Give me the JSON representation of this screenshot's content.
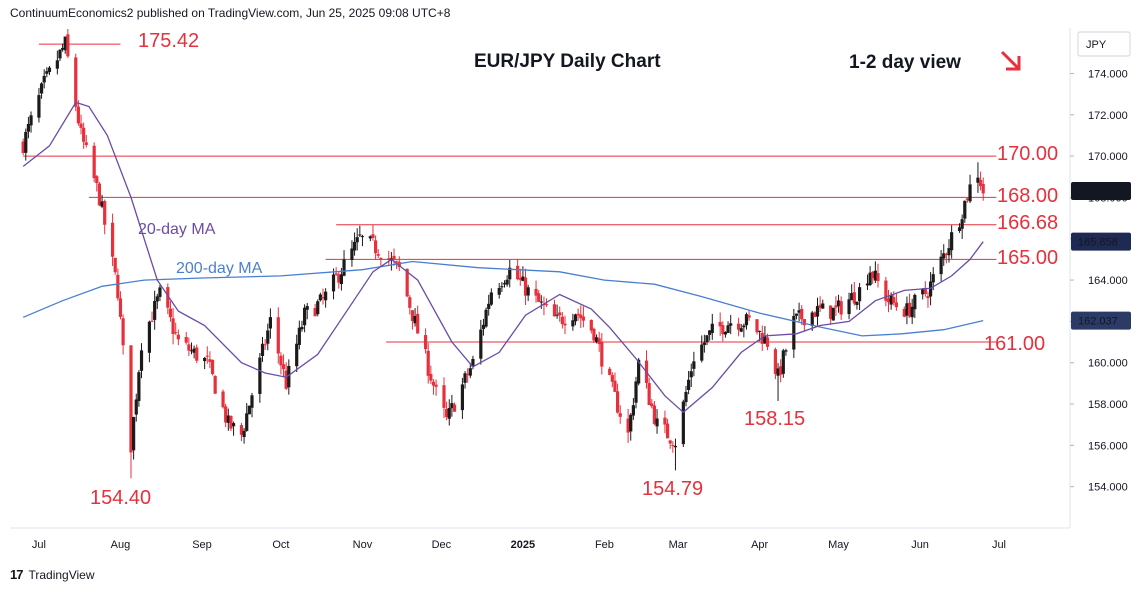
{
  "header": {
    "publisher": "ContinuumEconomics2 published on TradingView.com, Jun 25, 2025 09:08 UTC+8"
  },
  "footer": {
    "brand": "TradingView",
    "logo": "tradingview-logo-icon"
  },
  "colors": {
    "up": "#1b1b1b",
    "down": "#e8303c",
    "ma20": "#6a4ca8",
    "ma200": "#4a7fd0",
    "levels": "#e8303c",
    "ma20_badge": "#1f2a54",
    "ma200_badge": "#2c3a66",
    "price_badge": "#131722"
  },
  "chart_data": {
    "type": "candlestick",
    "title": "EUR/JPY Daily Chart",
    "subtitle": "1-2 day view",
    "arrow_icon": "arrow-down-right-icon",
    "currency": "JPY",
    "ylim": [
      152.0,
      176.2
    ],
    "y_ticks": [
      "174.000",
      "172.000",
      "170.000",
      "168.000",
      "166.000",
      "164.000",
      "162.000",
      "160.000",
      "158.000",
      "156.000",
      "154.000"
    ],
    "x_labels": [
      "Jul",
      "Aug",
      "Sep",
      "Oct",
      "Nov",
      "Dec",
      "2025",
      "Feb",
      "Mar",
      "Apr",
      "May",
      "Jun",
      "Jul"
    ],
    "levels": [
      {
        "value": 175.42,
        "label": "175.42",
        "from": "2024-07-01",
        "to": "2024-08-01"
      },
      {
        "value": 170.0,
        "label": "170.00",
        "from": "2024-06-25",
        "to": "2025-06-30"
      },
      {
        "value": 168.0,
        "label": "168.00",
        "from": "2024-07-20",
        "to": "2025-06-30"
      },
      {
        "value": 166.68,
        "label": "166.68",
        "from": "2024-10-22",
        "to": "2025-06-30"
      },
      {
        "value": 165.0,
        "label": "165.00",
        "from": "2024-10-18",
        "to": "2025-06-30"
      },
      {
        "value": 161.0,
        "label": "161.00",
        "from": "2024-11-10",
        "to": "2025-06-30"
      }
    ],
    "annotations": [
      {
        "label": "154.40",
        "date": "2024-08-05",
        "price": 154.4
      },
      {
        "label": "154.79",
        "date": "2025-02-28",
        "price": 154.79
      },
      {
        "label": "158.15",
        "date": "2025-04-08",
        "price": 158.15
      }
    ],
    "ma_labels": [
      {
        "label": "20-day MA",
        "series": "ma20"
      },
      {
        "label": "200-day MA",
        "series": "ma200"
      }
    ],
    "price_badges": [
      {
        "value": "168.309",
        "series": "price"
      },
      {
        "value": "165.858",
        "series": "ma20"
      },
      {
        "value": "162.037",
        "series": "ma200"
      }
    ],
    "anchors": [
      [
        "2024-06-25",
        170.6
      ],
      [
        "2024-07-03",
        173.5
      ],
      [
        "2024-07-11",
        175.42
      ],
      [
        "2024-07-17",
        171.0
      ],
      [
        "2024-07-24",
        168.0
      ],
      [
        "2024-07-31",
        163.5
      ],
      [
        "2024-08-05",
        156.0
      ],
      [
        "2024-08-09",
        161.0
      ],
      [
        "2024-08-16",
        163.3
      ],
      [
        "2024-08-23",
        161.0
      ],
      [
        "2024-09-03",
        160.0
      ],
      [
        "2024-09-11",
        157.0
      ],
      [
        "2024-09-16",
        156.5
      ],
      [
        "2024-09-27",
        162.0
      ],
      [
        "2024-10-03",
        159.0
      ],
      [
        "2024-10-10",
        162.3
      ],
      [
        "2024-10-17",
        163.0
      ],
      [
        "2024-10-24",
        164.5
      ],
      [
        "2024-10-31",
        166.0
      ],
      [
        "2024-11-07",
        165.5
      ],
      [
        "2024-11-15",
        164.5
      ],
      [
        "2024-11-22",
        161.5
      ],
      [
        "2024-11-29",
        158.5
      ],
      [
        "2024-12-03",
        157.2
      ],
      [
        "2024-12-13",
        160.0
      ],
      [
        "2024-12-20",
        163.5
      ],
      [
        "2024-12-27",
        164.5
      ],
      [
        "2025-01-06",
        163.0
      ],
      [
        "2025-01-14",
        162.0
      ],
      [
        "2025-01-21",
        162.5
      ],
      [
        "2025-01-28",
        161.5
      ],
      [
        "2025-02-03",
        159.0
      ],
      [
        "2025-02-10",
        156.5
      ],
      [
        "2025-02-14",
        160.0
      ],
      [
        "2025-02-21",
        157.0
      ],
      [
        "2025-02-28",
        156.2
      ],
      [
        "2025-03-07",
        160.3
      ],
      [
        "2025-03-14",
        161.5
      ],
      [
        "2025-03-21",
        162.0
      ],
      [
        "2025-03-28",
        162.0
      ],
      [
        "2025-04-04",
        161.0
      ],
      [
        "2025-04-08",
        159.3
      ],
      [
        "2025-04-14",
        162.0
      ],
      [
        "2025-04-22",
        162.5
      ],
      [
        "2025-04-30",
        162.5
      ],
      [
        "2025-05-09",
        163.5
      ],
      [
        "2025-05-13",
        164.5
      ],
      [
        "2025-05-20",
        163.0
      ],
      [
        "2025-05-27",
        162.5
      ],
      [
        "2025-06-04",
        163.5
      ],
      [
        "2025-06-11",
        165.5
      ],
      [
        "2025-06-16",
        167.0
      ],
      [
        "2025-06-20",
        168.5
      ],
      [
        "2025-06-23",
        169.2
      ],
      [
        "2025-06-25",
        168.309
      ]
    ],
    "ma20": [
      [
        "2024-06-25",
        169.5
      ],
      [
        "2024-07-05",
        170.5
      ],
      [
        "2024-07-15",
        172.6
      ],
      [
        "2024-07-20",
        172.4
      ],
      [
        "2024-07-27",
        171.0
      ],
      [
        "2024-08-05",
        168.0
      ],
      [
        "2024-08-15",
        164.0
      ],
      [
        "2024-08-23",
        162.5
      ],
      [
        "2024-09-02",
        161.8
      ],
      [
        "2024-09-16",
        160.0
      ],
      [
        "2024-09-25",
        159.5
      ],
      [
        "2024-10-03",
        159.3
      ],
      [
        "2024-10-15",
        160.4
      ],
      [
        "2024-10-25",
        162.3
      ],
      [
        "2024-11-05",
        164.4
      ],
      [
        "2024-11-12",
        165.0
      ],
      [
        "2024-11-22",
        164.0
      ],
      [
        "2024-12-05",
        161.0
      ],
      [
        "2024-12-13",
        159.8
      ],
      [
        "2024-12-23",
        160.5
      ],
      [
        "2025-01-02",
        162.3
      ],
      [
        "2025-01-15",
        163.3
      ],
      [
        "2025-01-27",
        162.6
      ],
      [
        "2025-02-03",
        161.7
      ],
      [
        "2025-02-13",
        160.2
      ],
      [
        "2025-02-24",
        158.4
      ],
      [
        "2025-03-03",
        157.6
      ],
      [
        "2025-03-14",
        158.8
      ],
      [
        "2025-03-25",
        160.5
      ],
      [
        "2025-04-03",
        161.3
      ],
      [
        "2025-04-15",
        161.4
      ],
      [
        "2025-04-24",
        161.8
      ],
      [
        "2025-05-05",
        162.0
      ],
      [
        "2025-05-15",
        163.0
      ],
      [
        "2025-05-26",
        163.5
      ],
      [
        "2025-06-05",
        163.6
      ],
      [
        "2025-06-13",
        164.2
      ],
      [
        "2025-06-20",
        165.0
      ],
      [
        "2025-06-25",
        165.858
      ]
    ],
    "ma200": [
      [
        "2024-06-25",
        162.2
      ],
      [
        "2024-07-10",
        163.0
      ],
      [
        "2024-07-25",
        163.7
      ],
      [
        "2024-08-10",
        164.0
      ],
      [
        "2024-09-01",
        164.1
      ],
      [
        "2024-10-01",
        164.2
      ],
      [
        "2024-11-01",
        164.5
      ],
      [
        "2024-11-20",
        164.9
      ],
      [
        "2024-12-15",
        164.6
      ],
      [
        "2025-01-15",
        164.4
      ],
      [
        "2025-02-01",
        164.0
      ],
      [
        "2025-02-20",
        163.8
      ],
      [
        "2025-03-10",
        163.2
      ],
      [
        "2025-04-01",
        162.4
      ],
      [
        "2025-04-25",
        161.7
      ],
      [
        "2025-05-10",
        161.3
      ],
      [
        "2025-05-25",
        161.4
      ],
      [
        "2025-06-10",
        161.6
      ],
      [
        "2025-06-25",
        162.037
      ]
    ]
  }
}
